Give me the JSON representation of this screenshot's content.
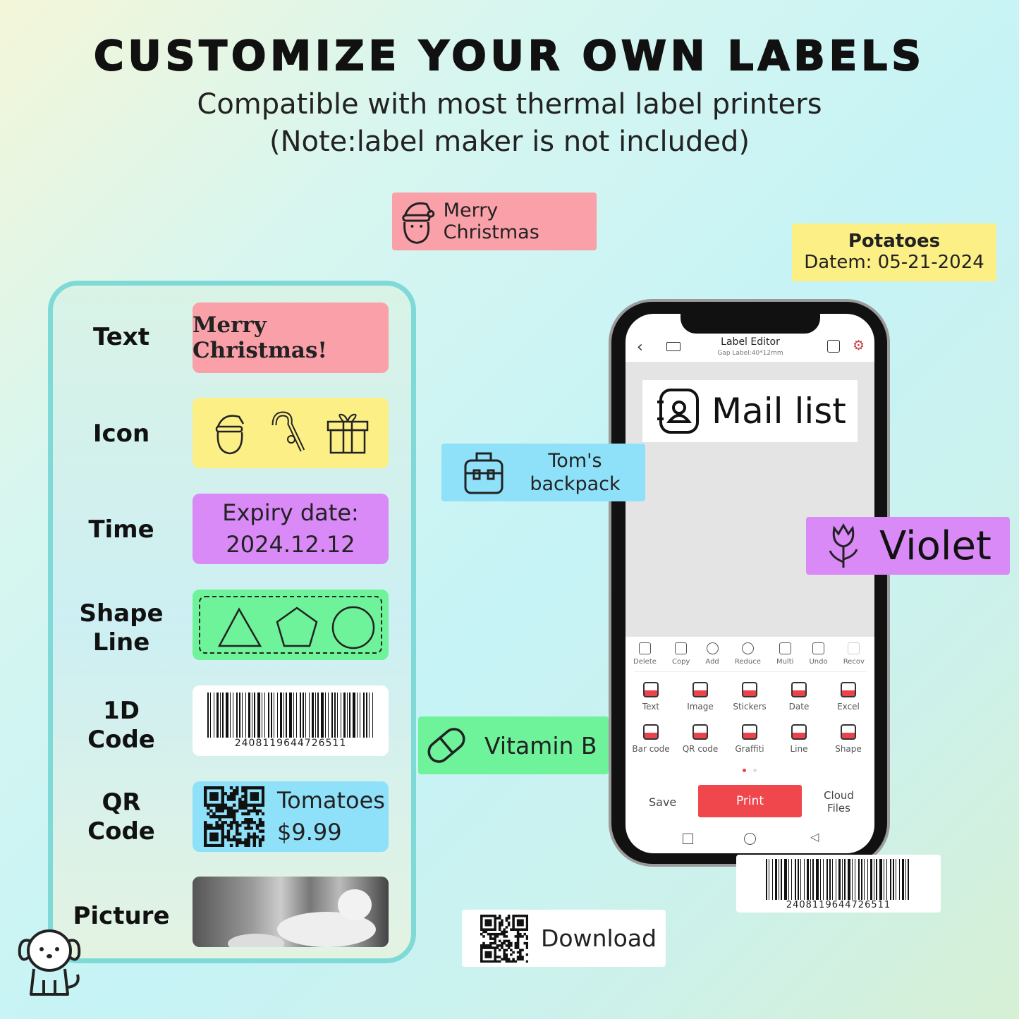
{
  "header": {
    "title": "CUSTOMIZE YOUR OWN LABELS",
    "subtitle": "Compatible with most thermal label printers",
    "note": "(Note:label maker is not included)"
  },
  "floating_labels": {
    "merry": {
      "text": "Merry Christmas",
      "icon": "santa-icon",
      "color": "#f9a0a8"
    },
    "potatoes": {
      "line1": "Potatoes",
      "line2": "Datem: 05-21-2024",
      "color": "#fbef85"
    },
    "backpack": {
      "line1": "Tom's",
      "line2": "backpack",
      "icon": "backpack-icon",
      "color": "#8fe1f9"
    },
    "violet": {
      "text": "Violet",
      "icon": "tulip-icon",
      "color": "#d98af7"
    },
    "vitamin": {
      "text": "Vitamin B",
      "icon": "pill-icon",
      "color": "#6ef29a"
    },
    "barcode": {
      "number": "2408119644726511"
    },
    "download": {
      "text": "Download",
      "icon": "qr-code-icon"
    }
  },
  "panel": {
    "rows": [
      {
        "name": "Text",
        "sample": "Merry Christmas!",
        "color": "#f9a0a8"
      },
      {
        "name": "Icon",
        "icons": [
          "santa-icon",
          "candy-cane-icon",
          "gift-icon"
        ],
        "color": "#fbef85"
      },
      {
        "name": "Time",
        "sample_line1": "Expiry date:",
        "sample_line2": "2024.12.12",
        "color": "#d98af7"
      },
      {
        "name_line1": "Shape",
        "name_line2": "Line",
        "shapes": [
          "triangle",
          "pentagon",
          "circle"
        ],
        "color": "#6ef29a"
      },
      {
        "name_line1": "1D",
        "name_line2": "Code",
        "barcode": "2408119644726511",
        "color": "#ffffff"
      },
      {
        "name_line1": "QR",
        "name_line2": "Code",
        "sample_line1": "Tomatoes",
        "sample_line2": "$9.99",
        "color": "#8fe1f9"
      },
      {
        "name": "Picture",
        "image": "dog-photo"
      }
    ]
  },
  "phone": {
    "title": "Label Editor",
    "subtitle": "Gap Label:40*12mm",
    "canvas_text": "Mail list",
    "toolbar": [
      "Delete",
      "Copy",
      "Add",
      "Reduce",
      "Multi",
      "Undo",
      "Recov"
    ],
    "grid": [
      "Text",
      "Image",
      "Stickers",
      "Date",
      "Excel",
      "Bar code",
      "QR code",
      "Graffiti",
      "Line",
      "Shape"
    ],
    "save": "Save",
    "print": "Print",
    "cloud1": "Cloud",
    "cloud2": "Files",
    "accent": "#f0474d"
  }
}
